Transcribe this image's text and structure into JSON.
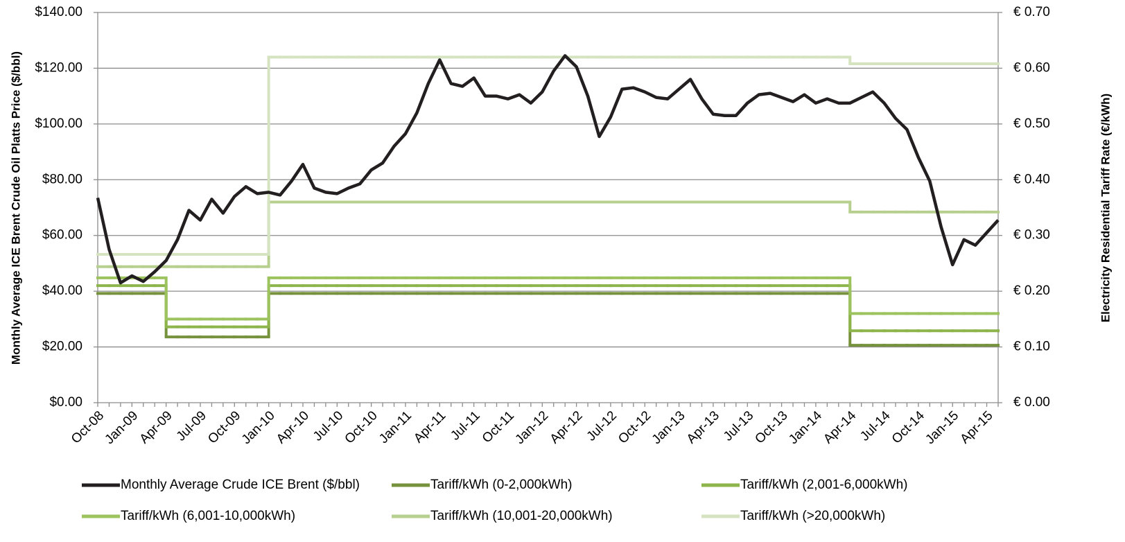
{
  "chart_data": {
    "type": "line",
    "y_label": "Monthly Average ICE Brent Crude Oil Platts Price ($/bbl)",
    "y2_label": "Electricity Residential Tariff Rate (€/kWh)",
    "categories": [
      "Oct-08",
      null,
      null,
      "Jan-09",
      null,
      null,
      "Apr-09",
      null,
      null,
      "Jul-09",
      null,
      null,
      "Oct-09",
      null,
      null,
      "Jan-10",
      null,
      null,
      "Apr-10",
      null,
      null,
      "Jul-10",
      null,
      null,
      "Oct-10",
      null,
      null,
      "Jan-11",
      null,
      null,
      "Apr-11",
      null,
      null,
      "Jul-11",
      null,
      null,
      "Oct-11",
      null,
      null,
      "Jan-12",
      null,
      null,
      "Apr-12",
      null,
      null,
      "Jul-12",
      null,
      null,
      "Oct-12",
      null,
      null,
      "Jan-13",
      null,
      null,
      "Apr-13",
      null,
      null,
      "Jul-13",
      null,
      null,
      "Oct-13",
      null,
      null,
      "Jan-14",
      null,
      null,
      "Apr-14",
      null,
      null,
      "Jul-14",
      null,
      null,
      "Oct-14",
      null,
      null,
      "Jan-15",
      null,
      null,
      "Apr-15",
      null
    ],
    "ylim": [
      0,
      140
    ],
    "yticks": [
      {
        "value": 0,
        "label": "$0.00"
      },
      {
        "value": 20,
        "label": "$20.00"
      },
      {
        "value": 40,
        "label": "$40.00"
      },
      {
        "value": 60,
        "label": "$60.00"
      },
      {
        "value": 80,
        "label": "$80.00"
      },
      {
        "value": 100,
        "label": "$100.00"
      },
      {
        "value": 120,
        "label": "$120.00"
      },
      {
        "value": 140,
        "label": "$140.00"
      }
    ],
    "y2lim": [
      0,
      0.7
    ],
    "y2ticks": [
      {
        "value": 0,
        "label": "€ 0.00"
      },
      {
        "value": 0.1,
        "label": "€ 0.10"
      },
      {
        "value": 0.2,
        "label": "€ 0.20"
      },
      {
        "value": 0.3,
        "label": "€ 0.30"
      },
      {
        "value": 0.4,
        "label": "€ 0.40"
      },
      {
        "value": 0.5,
        "label": "€ 0.50"
      },
      {
        "value": 0.6,
        "label": "€ 0.60"
      },
      {
        "value": 0.7,
        "label": "€ 0.70"
      }
    ],
    "grid": true,
    "legend": "bottom",
    "series": [
      {
        "name": "Monthly Average Crude ICE Brent ($/bbl)",
        "color": "#231f20",
        "values": [
          73.5,
          55,
          43,
          45.5,
          43.5,
          47,
          51,
          58.5,
          69,
          65.5,
          73,
          68,
          74,
          77.5,
          75,
          75.5,
          74.5,
          79.5,
          85.5,
          77,
          75.5,
          75,
          77,
          78.5,
          83.5,
          86,
          92,
          96.5,
          104,
          114.5,
          123,
          114.5,
          113.5,
          116.5,
          110,
          110,
          109,
          110.5,
          107.5,
          111.5,
          119,
          124.5,
          120.5,
          110,
          95.5,
          102.5,
          112.5,
          113,
          111.5,
          109.5,
          109,
          112.5,
          116,
          109,
          103.5,
          103,
          103,
          107.5,
          110.5,
          111,
          109.5,
          108,
          110.5,
          107.5,
          109,
          107.5,
          107.5,
          109.5,
          111.5,
          107.5,
          102,
          98,
          88,
          79.5,
          63,
          49.5,
          58.5,
          56.5,
          61,
          65.5
        ]
      },
      {
        "name": "Tariff/kWh (0-2,000kWh)",
        "color": "#76923c",
        "axis": "y2",
        "step": true,
        "values": [
          0.196,
          0.196,
          0.196,
          0.196,
          0.196,
          0.196,
          0.118,
          0.118,
          0.118,
          0.118,
          0.118,
          0.118,
          0.118,
          0.118,
          0.118,
          0.196,
          0.196,
          0.196,
          0.196,
          0.196,
          0.196,
          0.196,
          0.196,
          0.196,
          0.196,
          0.196,
          0.196,
          0.196,
          0.196,
          0.196,
          0.196,
          0.196,
          0.196,
          0.196,
          0.196,
          0.196,
          0.196,
          0.196,
          0.196,
          0.196,
          0.196,
          0.196,
          0.196,
          0.196,
          0.196,
          0.196,
          0.196,
          0.196,
          0.196,
          0.196,
          0.196,
          0.196,
          0.196,
          0.196,
          0.196,
          0.196,
          0.196,
          0.196,
          0.196,
          0.196,
          0.196,
          0.196,
          0.196,
          0.196,
          0.196,
          0.196,
          0.103,
          0.103,
          0.103,
          0.103,
          0.103,
          0.103,
          0.103,
          0.103,
          0.103,
          0.103,
          0.103,
          0.103,
          0.103,
          0.103
        ]
      },
      {
        "name": "Tariff/kWh (2,001-6,000kWh)",
        "color": "#8db54b",
        "axis": "y2",
        "step": true,
        "values": [
          0.21,
          0.21,
          0.21,
          0.21,
          0.21,
          0.21,
          0.136,
          0.136,
          0.136,
          0.136,
          0.136,
          0.136,
          0.136,
          0.136,
          0.136,
          0.21,
          0.21,
          0.21,
          0.21,
          0.21,
          0.21,
          0.21,
          0.21,
          0.21,
          0.21,
          0.21,
          0.21,
          0.21,
          0.21,
          0.21,
          0.21,
          0.21,
          0.21,
          0.21,
          0.21,
          0.21,
          0.21,
          0.21,
          0.21,
          0.21,
          0.21,
          0.21,
          0.21,
          0.21,
          0.21,
          0.21,
          0.21,
          0.21,
          0.21,
          0.21,
          0.21,
          0.21,
          0.21,
          0.21,
          0.21,
          0.21,
          0.21,
          0.21,
          0.21,
          0.21,
          0.21,
          0.21,
          0.21,
          0.21,
          0.21,
          0.21,
          0.129,
          0.129,
          0.129,
          0.129,
          0.129,
          0.129,
          0.129,
          0.129,
          0.129,
          0.129,
          0.129,
          0.129,
          0.129,
          0.129
        ]
      },
      {
        "name": "Tariff/kWh (6,001-10,000kWh)",
        "color": "#9dc35f",
        "axis": "y2",
        "step": true,
        "values": [
          0.224,
          0.224,
          0.224,
          0.224,
          0.224,
          0.224,
          0.15,
          0.15,
          0.15,
          0.15,
          0.15,
          0.15,
          0.15,
          0.15,
          0.15,
          0.224,
          0.224,
          0.224,
          0.224,
          0.224,
          0.224,
          0.224,
          0.224,
          0.224,
          0.224,
          0.224,
          0.224,
          0.224,
          0.224,
          0.224,
          0.224,
          0.224,
          0.224,
          0.224,
          0.224,
          0.224,
          0.224,
          0.224,
          0.224,
          0.224,
          0.224,
          0.224,
          0.224,
          0.224,
          0.224,
          0.224,
          0.224,
          0.224,
          0.224,
          0.224,
          0.224,
          0.224,
          0.224,
          0.224,
          0.224,
          0.224,
          0.224,
          0.224,
          0.224,
          0.224,
          0.224,
          0.224,
          0.224,
          0.224,
          0.224,
          0.224,
          0.16,
          0.16,
          0.16,
          0.16,
          0.16,
          0.16,
          0.16,
          0.16,
          0.16,
          0.16,
          0.16,
          0.16,
          0.16,
          0.16
        ]
      },
      {
        "name": "Tariff/kWh (10,001-20,000kWh)",
        "color": "#b7d08f",
        "axis": "y2",
        "step": true,
        "values": [
          0.244,
          0.244,
          0.244,
          0.244,
          0.244,
          0.244,
          0.244,
          0.244,
          0.244,
          0.244,
          0.244,
          0.244,
          0.244,
          0.244,
          0.244,
          0.36,
          0.36,
          0.36,
          0.36,
          0.36,
          0.36,
          0.36,
          0.36,
          0.36,
          0.36,
          0.36,
          0.36,
          0.36,
          0.36,
          0.36,
          0.36,
          0.36,
          0.36,
          0.36,
          0.36,
          0.36,
          0.36,
          0.36,
          0.36,
          0.36,
          0.36,
          0.36,
          0.36,
          0.36,
          0.36,
          0.36,
          0.36,
          0.36,
          0.36,
          0.36,
          0.36,
          0.36,
          0.36,
          0.36,
          0.36,
          0.36,
          0.36,
          0.36,
          0.36,
          0.36,
          0.36,
          0.36,
          0.36,
          0.36,
          0.36,
          0.36,
          0.342,
          0.342,
          0.342,
          0.342,
          0.342,
          0.342,
          0.342,
          0.342,
          0.342,
          0.342,
          0.342,
          0.342,
          0.342,
          0.342
        ]
      },
      {
        "name": "Tariff/kWh (>20,000kWh)",
        "color": "#d5e3c0",
        "axis": "y2",
        "step": true,
        "values": [
          0.266,
          0.266,
          0.266,
          0.266,
          0.266,
          0.266,
          0.266,
          0.266,
          0.266,
          0.266,
          0.266,
          0.266,
          0.266,
          0.266,
          0.266,
          0.62,
          0.62,
          0.62,
          0.62,
          0.62,
          0.62,
          0.62,
          0.62,
          0.62,
          0.62,
          0.62,
          0.62,
          0.62,
          0.62,
          0.62,
          0.62,
          0.62,
          0.62,
          0.62,
          0.62,
          0.62,
          0.62,
          0.62,
          0.62,
          0.62,
          0.62,
          0.62,
          0.62,
          0.62,
          0.62,
          0.62,
          0.62,
          0.62,
          0.62,
          0.62,
          0.62,
          0.62,
          0.62,
          0.62,
          0.62,
          0.62,
          0.62,
          0.62,
          0.62,
          0.62,
          0.62,
          0.62,
          0.62,
          0.62,
          0.62,
          0.62,
          0.608,
          0.608,
          0.608,
          0.608,
          0.608,
          0.608,
          0.608,
          0.608,
          0.608,
          0.608,
          0.608,
          0.608,
          0.608,
          0.608
        ]
      }
    ]
  }
}
